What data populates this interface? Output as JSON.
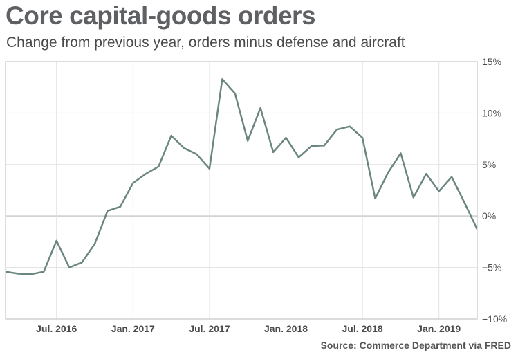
{
  "header": {
    "title": "Core capital-goods orders",
    "subtitle": "Change from previous year, orders minus defense and aircraft"
  },
  "footer": {
    "source": "Source: Commerce Department via FRED"
  },
  "chart_data": {
    "type": "line",
    "title": "Core capital-goods orders",
    "subtitle": "Change from previous year, orders minus defense and aircraft",
    "xlabel": "",
    "ylabel": "",
    "x_ticks": [
      "Jul. 2016",
      "Jan. 2017",
      "Jul. 2017",
      "Jan. 2018",
      "Jul. 2018",
      "Jan. 2019"
    ],
    "y_ticks": [
      "15%",
      "10%",
      "5%",
      "0%",
      "−5%",
      "−10%"
    ],
    "y_tick_values": [
      15,
      10,
      5,
      0,
      -5,
      -10
    ],
    "ylim": [
      -10,
      15
    ],
    "y_axis_side": "right",
    "grid": true,
    "line_color": "#6b8580",
    "x": [
      "2016-03",
      "2016-04",
      "2016-05",
      "2016-06",
      "2016-07",
      "2016-08",
      "2016-09",
      "2016-10",
      "2016-11",
      "2016-12",
      "2017-01",
      "2017-02",
      "2017-03",
      "2017-04",
      "2017-05",
      "2017-06",
      "2017-07",
      "2017-08",
      "2017-09",
      "2017-10",
      "2017-11",
      "2017-12",
      "2018-01",
      "2018-02",
      "2018-03",
      "2018-04",
      "2018-05",
      "2018-06",
      "2018-07",
      "2018-08",
      "2018-09",
      "2018-10",
      "2018-11",
      "2018-12",
      "2019-01",
      "2019-02",
      "2019-03",
      "2019-04"
    ],
    "series": [
      {
        "values": [
          -5.4,
          -5.6,
          -5.65,
          -5.4,
          -2.4,
          -5.0,
          -4.5,
          -2.7,
          0.5,
          0.9,
          3.2,
          4.1,
          4.8,
          7.8,
          6.6,
          6.0,
          4.6,
          13.3,
          11.9,
          7.3,
          10.5,
          6.2,
          7.6,
          5.7,
          6.8,
          6.85,
          8.4,
          8.7,
          7.6,
          1.7,
          4.2,
          6.1,
          1.8,
          4.1,
          2.4,
          3.8,
          1.3,
          -1.3
        ]
      }
    ]
  }
}
